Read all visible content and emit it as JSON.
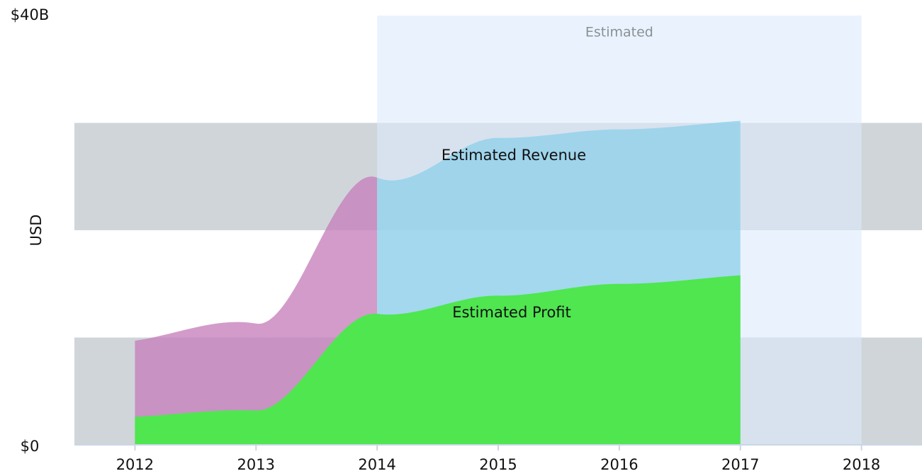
{
  "chart_data": {
    "type": "area",
    "y_label": "USD",
    "xlim": [
      2011.5,
      2018.5
    ],
    "xticks": [
      2012,
      2013,
      2014,
      2015,
      2016,
      2017,
      2018
    ],
    "ylim": [
      0,
      40
    ],
    "yticks": [
      {
        "value": 0,
        "label": "$0"
      },
      {
        "value": 40,
        "label": "$40B"
      }
    ],
    "y_bands": [
      [
        0,
        10
      ],
      [
        20,
        30
      ]
    ],
    "band_color": "#d0d5d9",
    "estimated_region": {
      "label": "Estimated",
      "from": 2014,
      "to": 2018,
      "color": "#dcebfc"
    },
    "x": [
      2012,
      2013,
      2014,
      2015,
      2016,
      2017
    ],
    "series": [
      {
        "name": "Estimated Revenue",
        "color": "#c67fbb",
        "estimated_color": "#8fd0ea",
        "values": [
          9.7,
          11.3,
          24.9,
          28.6,
          29.4,
          30.2
        ]
      },
      {
        "name": "Estimated Profit",
        "color": "#4fe650",
        "estimated_color": "#4fe650",
        "values": [
          2.6,
          3.2,
          12.2,
          13.9,
          15.0,
          15.8
        ]
      }
    ]
  }
}
